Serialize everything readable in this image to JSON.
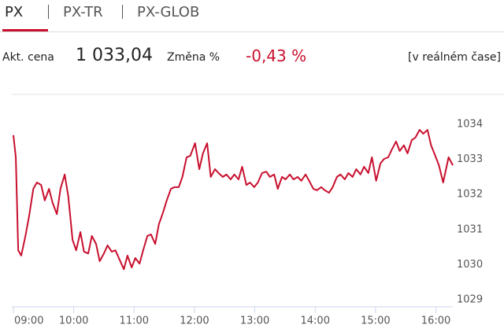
{
  "tabs": [
    "PX",
    "PX-TR",
    "PX-GLOB"
  ],
  "quote": {
    "price_label": "Akt. cena",
    "price": "1 033,04",
    "change_label": "Změna %",
    "change": "-0,43 %",
    "realtime": "[v reálném čase]"
  },
  "chart_data": {
    "type": "line",
    "x": [
      9.0,
      9.04,
      9.08,
      9.13,
      9.2,
      9.26,
      9.33,
      9.39,
      9.46,
      9.52,
      9.59,
      9.65,
      9.72,
      9.78,
      9.85,
      9.91,
      9.98,
      10.04,
      10.11,
      10.17,
      10.24,
      10.3,
      10.37,
      10.43,
      10.5,
      10.56,
      10.63,
      10.69,
      10.76,
      10.83,
      10.89,
      10.96,
      11.02,
      11.09,
      11.15,
      11.22,
      11.28,
      11.35,
      11.41,
      11.48,
      11.54,
      11.61,
      11.67,
      11.74,
      11.8,
      11.87,
      11.93,
      12.01,
      12.08,
      12.14,
      12.21,
      12.27,
      12.34,
      12.4,
      12.47,
      12.53,
      12.6,
      12.66,
      12.73,
      12.79,
      12.86,
      12.92,
      12.99,
      13.05,
      13.12,
      13.19,
      13.25,
      13.32,
      13.38,
      13.45,
      13.51,
      13.58,
      13.64,
      13.71,
      13.77,
      13.84,
      13.9,
      13.97,
      14.03,
      14.1,
      14.16,
      14.23,
      14.29,
      14.36,
      14.42,
      14.49,
      14.55,
      14.62,
      14.68,
      14.75,
      14.81,
      14.88,
      14.94,
      15.01,
      15.08,
      15.14,
      15.21,
      15.27,
      15.34,
      15.4,
      15.47,
      15.53,
      15.6,
      15.66,
      15.73,
      15.79,
      15.86,
      15.92,
      15.99,
      16.05,
      16.12,
      16.21,
      16.28
    ],
    "series": [
      {
        "color": "#c8102e",
        "values": [
          1033.69,
          1033.06,
          1030.41,
          1030.26,
          1030.82,
          1031.38,
          1032.16,
          1032.34,
          1032.27,
          1031.83,
          1032.16,
          1031.76,
          1031.44,
          1032.16,
          1032.57,
          1031.94,
          1030.71,
          1030.41,
          1030.93,
          1030.37,
          1030.32,
          1030.82,
          1030.59,
          1030.1,
          1030.32,
          1030.55,
          1030.37,
          1030.41,
          1030.14,
          1029.87,
          1030.26,
          1029.92,
          1030.19,
          1030.03,
          1030.41,
          1030.82,
          1030.86,
          1030.59,
          1031.15,
          1031.49,
          1031.83,
          1032.16,
          1032.21,
          1032.21,
          1032.5,
          1033.06,
          1033.1,
          1033.46,
          1032.72,
          1033.17,
          1033.46,
          1032.5,
          1032.72,
          1032.61,
          1032.5,
          1032.57,
          1032.43,
          1032.57,
          1032.43,
          1032.79,
          1032.27,
          1032.34,
          1032.21,
          1032.34,
          1032.61,
          1032.65,
          1032.5,
          1032.57,
          1032.16,
          1032.5,
          1032.43,
          1032.57,
          1032.43,
          1032.5,
          1032.39,
          1032.57,
          1032.39,
          1032.16,
          1032.12,
          1032.21,
          1032.12,
          1032.05,
          1032.21,
          1032.5,
          1032.57,
          1032.43,
          1032.61,
          1032.5,
          1032.72,
          1032.57,
          1032.79,
          1032.61,
          1033.06,
          1032.39,
          1032.88,
          1033.01,
          1033.06,
          1033.28,
          1033.51,
          1033.24,
          1033.4,
          1033.17,
          1033.55,
          1033.62,
          1033.84,
          1033.73,
          1033.84,
          1033.4,
          1033.1,
          1032.83,
          1032.34,
          1033.06,
          1032.83
        ]
      }
    ],
    "xlim": [
      9.0,
      16.28
    ],
    "xticks": [
      {
        "value": 9,
        "label": "09:00"
      },
      {
        "value": 10,
        "label": "10:00"
      },
      {
        "value": 11,
        "label": "11:00"
      },
      {
        "value": 12,
        "label": "12:00"
      },
      {
        "value": 13,
        "label": "13:00"
      },
      {
        "value": 14,
        "label": "14:00"
      },
      {
        "value": 15,
        "label": "15:00"
      },
      {
        "value": 16,
        "label": "16:00"
      }
    ],
    "ylim": [
      1028.8,
      1034.85
    ],
    "yticks": [
      1029,
      1030,
      1031,
      1032,
      1033,
      1034
    ]
  }
}
